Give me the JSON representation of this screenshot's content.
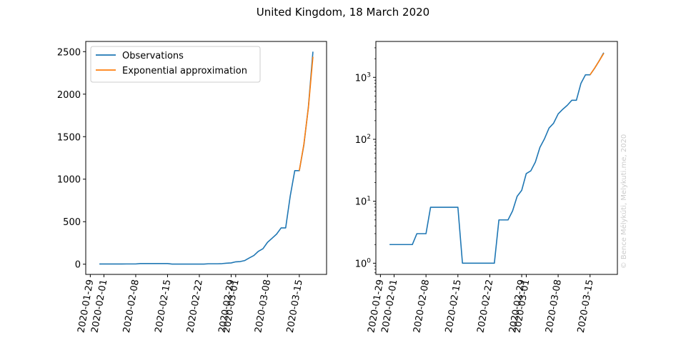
{
  "suptitle": "United Kingdom, 18 March 2020",
  "watermark": "© Bence Mélykúti, Melykuti.me, 2020",
  "colors": {
    "observations": "#1f77b4",
    "approximation": "#ff7f0e",
    "watermark": "#cccccc"
  },
  "x_ticks": [
    "2020-01-29",
    "2020-02-01",
    "2020-02-08",
    "2020-02-15",
    "2020-02-22",
    "2020-02-29",
    "2020-03-01",
    "2020-03-08",
    "2020-03-15"
  ],
  "chart_data": [
    {
      "type": "line",
      "scale": "linear",
      "xlabel": "",
      "ylabel": "",
      "xlim": [
        "2020-01-28",
        "2020-03-21"
      ],
      "ylim": [
        -120,
        2620
      ],
      "y_ticks": [
        0,
        500,
        1000,
        1500,
        2000,
        2500
      ],
      "y_tick_labels": [
        "0",
        "500",
        "1000",
        "1500",
        "2000",
        "2500"
      ],
      "grid": false,
      "legend": {
        "placement": "top-left",
        "entries": [
          "Observations",
          "Exponential approximation"
        ]
      },
      "series": [
        {
          "name": "Observations",
          "color_key": "observations",
          "x": [
            "2020-01-31",
            "2020-02-01",
            "2020-02-02",
            "2020-02-03",
            "2020-02-04",
            "2020-02-05",
            "2020-02-06",
            "2020-02-07",
            "2020-02-08",
            "2020-02-09",
            "2020-02-10",
            "2020-02-11",
            "2020-02-12",
            "2020-02-13",
            "2020-02-14",
            "2020-02-15",
            "2020-02-16",
            "2020-02-17",
            "2020-02-18",
            "2020-02-19",
            "2020-02-20",
            "2020-02-21",
            "2020-02-22",
            "2020-02-23",
            "2020-02-24",
            "2020-02-25",
            "2020-02-26",
            "2020-02-27",
            "2020-02-28",
            "2020-02-29",
            "2020-03-01",
            "2020-03-02",
            "2020-03-03",
            "2020-03-04",
            "2020-03-05",
            "2020-03-06",
            "2020-03-07",
            "2020-03-08",
            "2020-03-09",
            "2020-03-10",
            "2020-03-11",
            "2020-03-12",
            "2020-03-13",
            "2020-03-14",
            "2020-03-15",
            "2020-03-16",
            "2020-03-17",
            "2020-03-18"
          ],
          "values": [
            2,
            2,
            2,
            2,
            2,
            2,
            3,
            3,
            3,
            8,
            8,
            8,
            8,
            8,
            8,
            8,
            1,
            1,
            1,
            1,
            1,
            1,
            1,
            1,
            5,
            5,
            5,
            7,
            12,
            15,
            28,
            31,
            43,
            74,
            102,
            152,
            182,
            257,
            305,
            354,
            427,
            427,
            800,
            1100,
            1100,
            1400,
            1850,
            2500
          ]
        },
        {
          "name": "Exponential approximation",
          "color_key": "approximation",
          "x": [
            "2020-03-15",
            "2020-03-16",
            "2020-03-17",
            "2020-03-18"
          ],
          "values": [
            1100,
            1410,
            1840,
            2440
          ]
        }
      ]
    },
    {
      "type": "line",
      "scale": "log",
      "xlabel": "",
      "ylabel": "",
      "xlim": [
        "2020-01-28",
        "2020-03-21"
      ],
      "ylim": [
        0.66,
        3800
      ],
      "y_ticks": [
        1,
        10,
        100,
        1000
      ],
      "y_tick_labels": [
        [
          "10",
          "0"
        ],
        [
          "10",
          "1"
        ],
        [
          "10",
          "2"
        ],
        [
          "10",
          "3"
        ]
      ],
      "grid": false,
      "legend": null,
      "series": [
        {
          "name": "Observations",
          "color_key": "observations",
          "x": [
            "2020-01-31",
            "2020-02-01",
            "2020-02-02",
            "2020-02-03",
            "2020-02-04",
            "2020-02-05",
            "2020-02-06",
            "2020-02-07",
            "2020-02-08",
            "2020-02-09",
            "2020-02-10",
            "2020-02-11",
            "2020-02-12",
            "2020-02-13",
            "2020-02-14",
            "2020-02-15",
            "2020-02-16",
            "2020-02-17",
            "2020-02-18",
            "2020-02-19",
            "2020-02-20",
            "2020-02-21",
            "2020-02-22",
            "2020-02-23",
            "2020-02-24",
            "2020-02-25",
            "2020-02-26",
            "2020-02-27",
            "2020-02-28",
            "2020-02-29",
            "2020-03-01",
            "2020-03-02",
            "2020-03-03",
            "2020-03-04",
            "2020-03-05",
            "2020-03-06",
            "2020-03-07",
            "2020-03-08",
            "2020-03-09",
            "2020-03-10",
            "2020-03-11",
            "2020-03-12",
            "2020-03-13",
            "2020-03-14",
            "2020-03-15",
            "2020-03-16",
            "2020-03-17",
            "2020-03-18"
          ],
          "values": [
            2,
            2,
            2,
            2,
            2,
            2,
            3,
            3,
            3,
            8,
            8,
            8,
            8,
            8,
            8,
            8,
            1,
            1,
            1,
            1,
            1,
            1,
            1,
            1,
            5,
            5,
            5,
            7,
            12,
            15,
            28,
            31,
            43,
            74,
            102,
            152,
            182,
            257,
            305,
            354,
            427,
            427,
            800,
            1100,
            1100,
            1400,
            1850,
            2500
          ]
        },
        {
          "name": "Exponential approximation",
          "color_key": "approximation",
          "x": [
            "2020-03-15",
            "2020-03-16",
            "2020-03-17",
            "2020-03-18"
          ],
          "values": [
            1100,
            1410,
            1840,
            2440
          ]
        }
      ]
    }
  ]
}
